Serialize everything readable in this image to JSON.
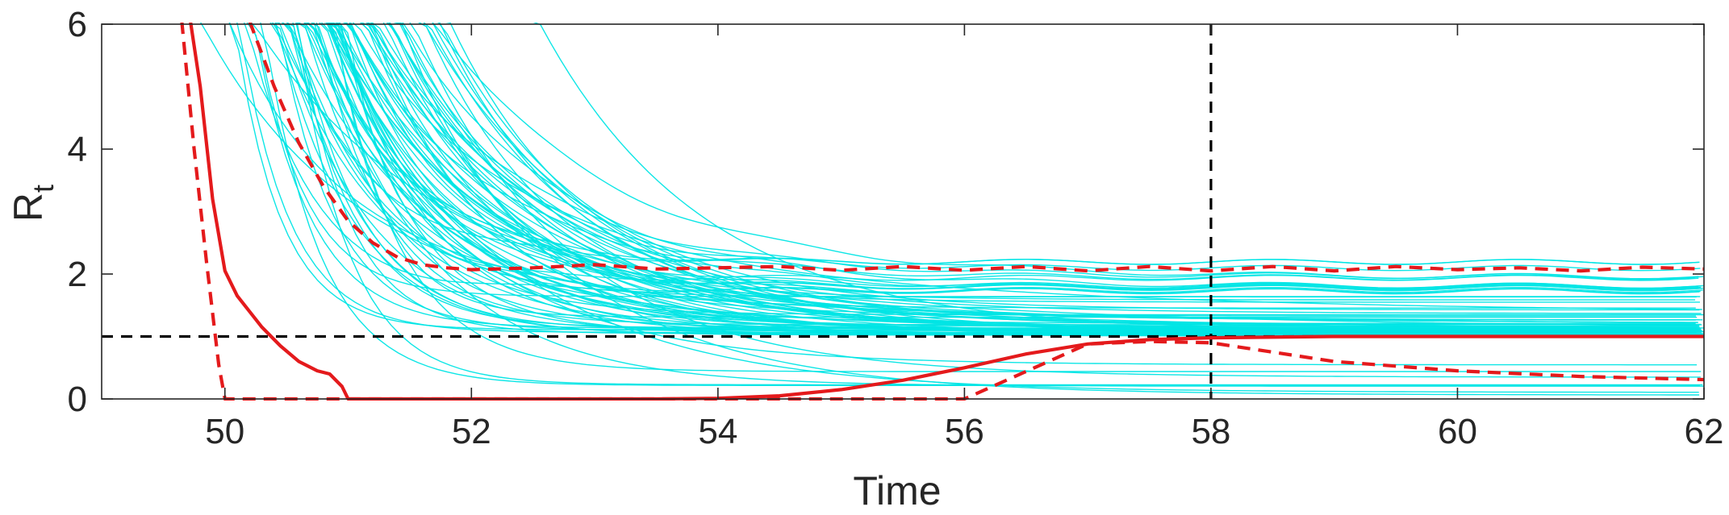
{
  "chart_data": {
    "type": "line",
    "xlabel": "Time",
    "ylabel": "R",
    "ylabel_subscript": "t",
    "xlim": [
      49,
      62
    ],
    "ylim": [
      0,
      6
    ],
    "x_ticks": [
      50,
      52,
      54,
      56,
      58,
      60,
      62
    ],
    "y_ticks": [
      0,
      2,
      4,
      6
    ],
    "x_tick_labels": [
      "50",
      "52",
      "54",
      "56",
      "58",
      "60",
      "62"
    ],
    "y_tick_labels": [
      "0",
      "2",
      "4",
      "6"
    ],
    "grid": false,
    "colors": {
      "ensemble": "#00e5e5",
      "estimate": "#e41a1c",
      "reference": "#000000",
      "axis": "#262626"
    },
    "reference_lines": [
      {
        "orientation": "horizontal",
        "value": 1,
        "style": "dashed",
        "color": "#000000"
      },
      {
        "orientation": "vertical",
        "value": 58,
        "style": "dashed",
        "color": "#000000"
      }
    ],
    "ensemble": {
      "count": 90,
      "style": "solid",
      "color": "#00e5e5",
      "description_values": {
        "start_time_range": [
          49.7,
          51.2
        ],
        "final_level_range": [
          0.05,
          2.2
        ]
      }
    },
    "series": [
      {
        "style": "solid",
        "color": "#e41a1c",
        "x": [
          49.72,
          49.8,
          49.9,
          50.0,
          50.1,
          50.2,
          50.3,
          50.45,
          50.6,
          50.75,
          50.85,
          50.95,
          51.0,
          52,
          53,
          53.5,
          54,
          54.5,
          55,
          55.5,
          56,
          56.5,
          57,
          57.5,
          58,
          59,
          60,
          61,
          62
        ],
        "y": [
          6.1,
          5.0,
          3.2,
          2.05,
          1.65,
          1.4,
          1.15,
          0.85,
          0.6,
          0.45,
          0.4,
          0.2,
          0.0,
          0.0,
          0.0,
          0.0,
          0.01,
          0.05,
          0.15,
          0.3,
          0.5,
          0.72,
          0.88,
          0.95,
          0.98,
          1.0,
          1.0,
          1.0,
          1.0
        ]
      },
      {
        "style": "dashed",
        "color": "#e41a1c",
        "x": [
          49.65,
          49.75,
          49.85,
          49.95,
          50.0,
          51,
          52,
          54,
          56,
          57,
          57.5,
          58,
          58.5,
          59,
          60,
          61,
          62
        ],
        "y": [
          6.1,
          4.0,
          2.2,
          0.55,
          0.0,
          0.0,
          0.0,
          0.0,
          0.0,
          0.88,
          0.92,
          0.9,
          0.75,
          0.6,
          0.45,
          0.36,
          0.31
        ]
      },
      {
        "style": "dashed",
        "color": "#e41a1c",
        "x": [
          50.2,
          50.4,
          50.6,
          50.8,
          51.0,
          51.2,
          51.4,
          51.6,
          51.8,
          52,
          52.5,
          53,
          53.5,
          54,
          54.5,
          55,
          55.5,
          56,
          56.5,
          57,
          57.5,
          58,
          58.5,
          59,
          59.5,
          60,
          60.5,
          61,
          61.5,
          62
        ],
        "y": [
          6.1,
          5.0,
          4.1,
          3.4,
          2.85,
          2.5,
          2.27,
          2.15,
          2.1,
          2.07,
          2.1,
          2.15,
          2.08,
          2.1,
          2.12,
          2.06,
          2.12,
          2.06,
          2.12,
          2.05,
          2.12,
          2.05,
          2.12,
          2.05,
          2.12,
          2.07,
          2.1,
          2.05,
          2.11,
          2.08
        ]
      }
    ]
  }
}
